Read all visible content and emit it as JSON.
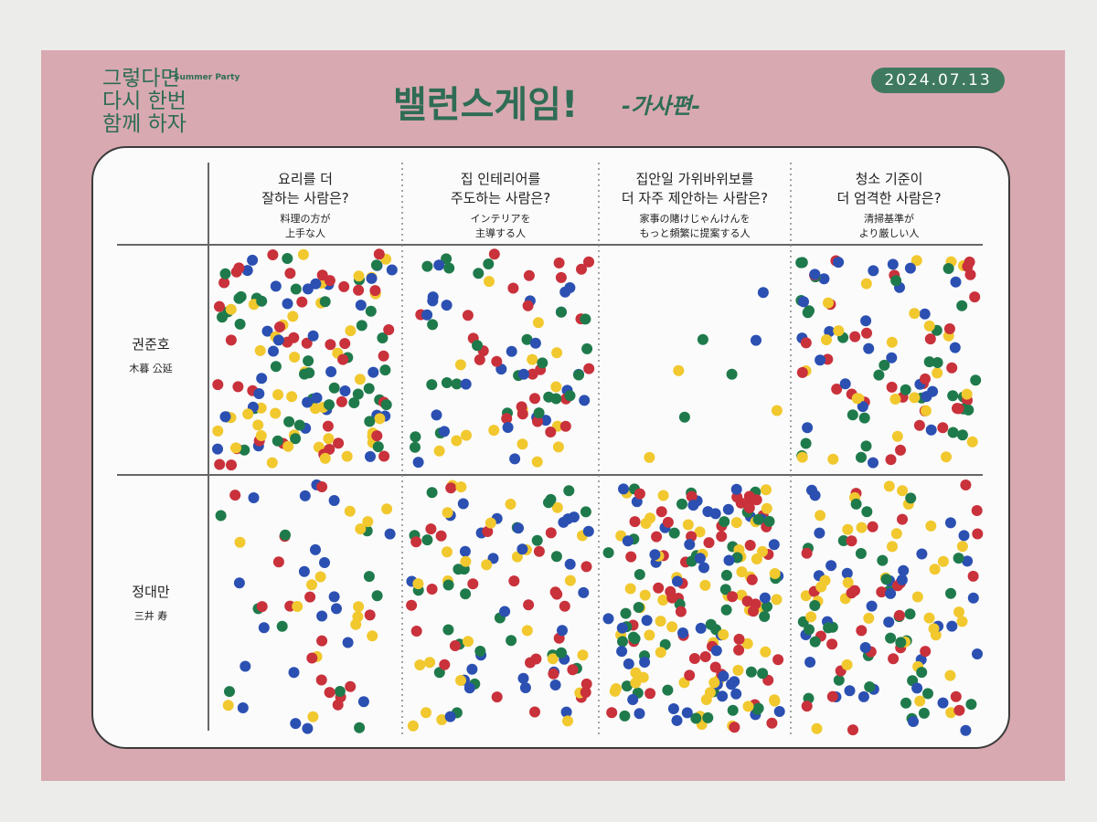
{
  "header": {
    "logo": [
      "그렇다면",
      "다시 한번",
      "함께 하자"
    ],
    "event": "Summer Party",
    "date": "2024.07.13",
    "title": "밸런스게임!",
    "subtitle": "-가사편-"
  },
  "columns": [
    {
      "ko": [
        "요리를 더",
        "잘하는 사람은?"
      ],
      "ja": [
        "料理の方が",
        "上手な人"
      ]
    },
    {
      "ko": [
        "집 인테리어를",
        "주도하는 사람은?"
      ],
      "ja": [
        "インテリアを",
        "主導する人"
      ]
    },
    {
      "ko": [
        "집안일 가위바위보를",
        "더 자주 제안하는 사람은?"
      ],
      "ja": [
        "家事の賭けじゃんけんを",
        "もっと頻繁に提案する人"
      ]
    },
    {
      "ko": [
        "청소 기준이",
        "더 엄격한 사람은?"
      ],
      "ja": [
        "清掃基準が",
        "より厳しい人"
      ]
    }
  ],
  "rows": [
    {
      "ko": "권준호",
      "ja": "木暮 公延"
    },
    {
      "ko": "정대만",
      "ja": "三井 寿"
    }
  ]
}
